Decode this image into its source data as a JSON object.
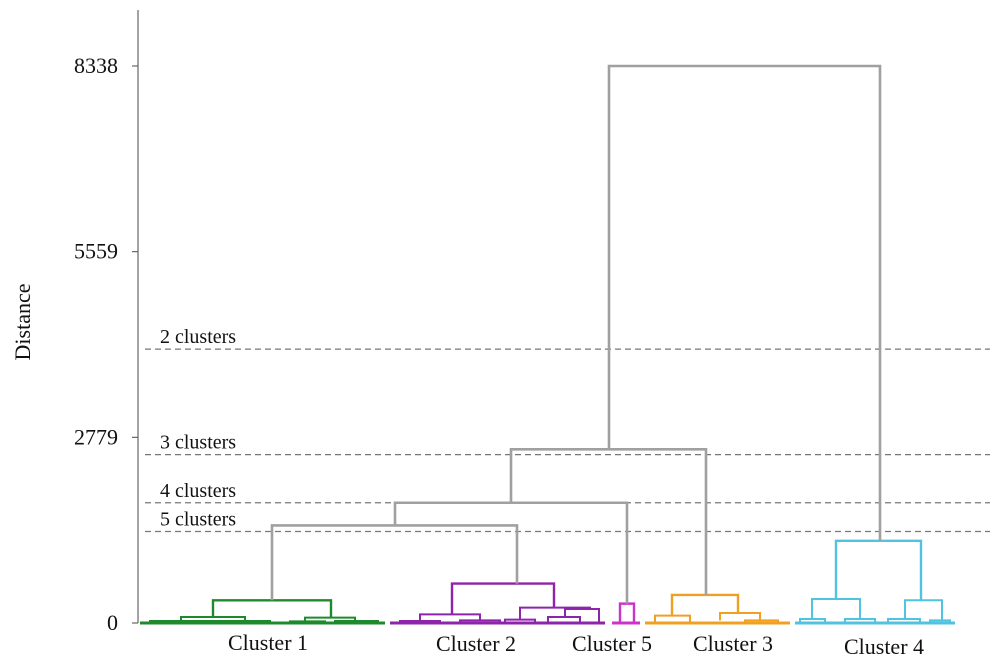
{
  "chart_data": {
    "type": "dendrogram",
    "title": "",
    "xlabel": "",
    "ylabel": "Distance",
    "ylim": [
      0,
      9200
    ],
    "y_ticks": [
      0,
      2779,
      5559,
      8338
    ],
    "y_tick_labels": [
      "0",
      "2779",
      "5559",
      "8338"
    ],
    "cut_lines": [
      {
        "label": "2 clusters",
        "y": 4100
      },
      {
        "label": "3 clusters",
        "y": 2520
      },
      {
        "label": "4 clusters",
        "y": 1800
      },
      {
        "label": "5 clusters",
        "y": 1370
      }
    ],
    "clusters": [
      {
        "name": "Cluster 1",
        "color": "#1e8a2c"
      },
      {
        "name": "Cluster 2",
        "color": "#8e24aa"
      },
      {
        "name": "Cluster 5",
        "color": "#cc33cc"
      },
      {
        "name": "Cluster 3",
        "color": "#f0a020"
      },
      {
        "name": "Cluster 4",
        "color": "#4fc3e0"
      }
    ],
    "merges": [
      {
        "label": "Cluster 1 + Cluster 2",
        "height": 1460,
        "color": "#a0a0a0"
      },
      {
        "label": "(1,2) + Cluster 5",
        "height": 1800,
        "color": "#a0a0a0"
      },
      {
        "label": "(1,2,5) + Cluster 3",
        "height": 2600,
        "color": "#a0a0a0"
      },
      {
        "label": "(1,2,5,3) + Cluster 4",
        "height": 8338,
        "color": "#a0a0a0"
      }
    ],
    "subtree_heights": {
      "Cluster 1": 340,
      "Cluster 2": 590,
      "Cluster 5": 290,
      "Cluster 3": 420,
      "Cluster 4": 1230
    },
    "grid": false,
    "legend": "none"
  }
}
